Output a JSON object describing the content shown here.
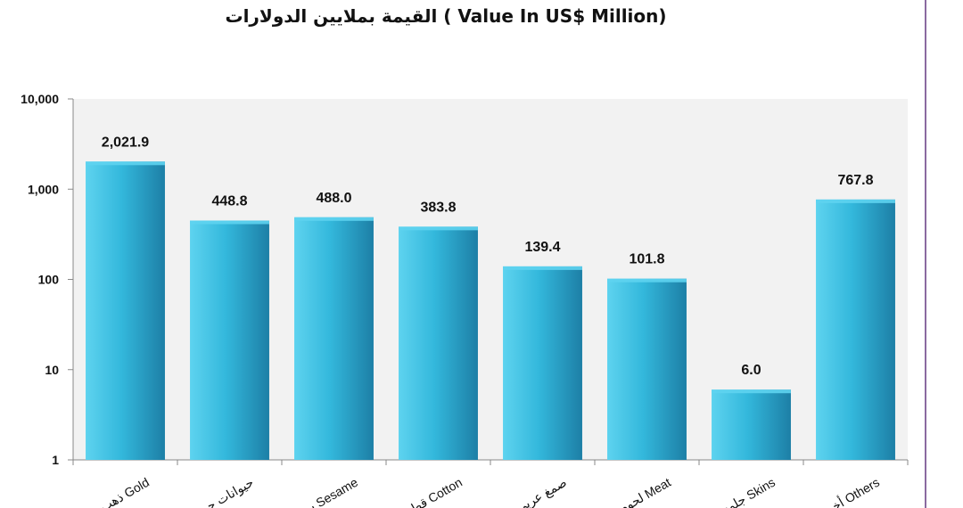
{
  "chart_data": {
    "type": "bar",
    "title": "القيمة بملايين الدولارات  ( Value In US$ Million)",
    "yscale": "log",
    "ylim": [
      1,
      10000
    ],
    "yticks": [
      "1",
      "10",
      "100",
      "1,000",
      "10,000"
    ],
    "categories": [
      "ذهب Gold",
      "حيوانات حية",
      "سمسم Sesame",
      "قطن Cotton",
      "صمغ عربي",
      "لحوم Meat",
      "جلود Skins",
      "أخرى Others"
    ],
    "values": [
      2021.9,
      448.8,
      488.0,
      383.8,
      139.4,
      101.8,
      6.0,
      767.8
    ],
    "data_labels": [
      "2,021.9",
      "448.8",
      "488.0",
      "383.8",
      "139.4",
      "101.8",
      "6.0",
      "767.8"
    ],
    "grid": false,
    "legend": "none",
    "colors": {
      "bar_top": "#5ed3ef",
      "bar_mid": "#33b8dc",
      "bar_bottom": "#1d7fa6",
      "plot_bg": "#f2f2f2"
    }
  }
}
